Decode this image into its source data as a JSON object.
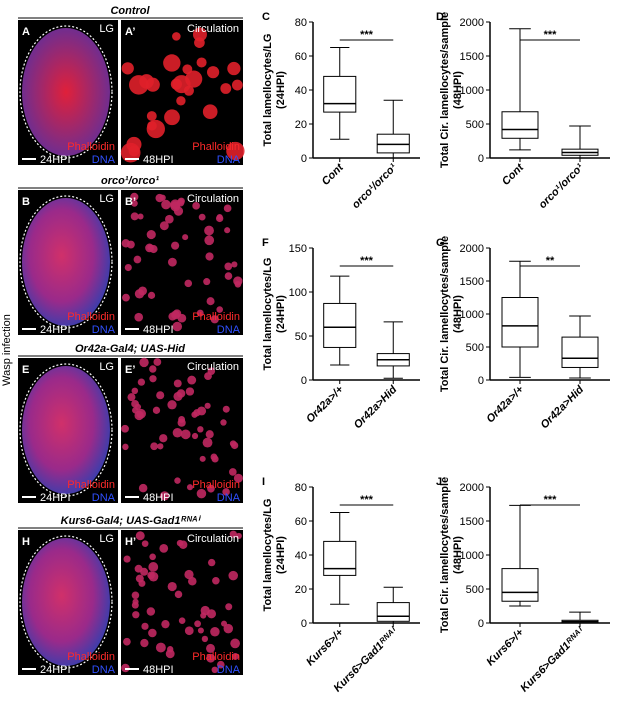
{
  "side_label": "Wasp infection",
  "panels": [
    {
      "title": "Control",
      "left": {
        "letter": "A",
        "region": "LG",
        "time": "24HPI",
        "stain1": "Phalloidin",
        "stain2": "DNA"
      },
      "right": {
        "letter": "A’",
        "region": "Circulation",
        "time": "48HPI",
        "stain1": "Phalloidin",
        "stain2": "DNA"
      }
    },
    {
      "title": "orco¹/orco¹",
      "left": {
        "letter": "B",
        "region": "LG",
        "time": "24HPI",
        "stain1": "Phalloidin",
        "stain2": "DNA"
      },
      "right": {
        "letter": "B’",
        "region": "Circulation",
        "time": "48HPI",
        "stain1": "Phalloidin",
        "stain2": "DNA"
      }
    },
    {
      "title": "Or42a-Gal4; UAS-Hid",
      "left": {
        "letter": "E",
        "region": "LG",
        "time": "24HPI",
        "stain1": "Phalloidin",
        "stain2": "DNA"
      },
      "right": {
        "letter": "E’",
        "region": "Circulation",
        "time": "48HPI",
        "stain1": "Phalloidin",
        "stain2": "DNA"
      }
    },
    {
      "title": "Kurs6-Gal4; UAS-Gad1ᴿᴺᴬⁱ",
      "left": {
        "letter": "H",
        "region": "LG",
        "time": "24HPI",
        "stain1": "Phalloidin",
        "stain2": "DNA"
      },
      "right": {
        "letter": "H’",
        "region": "Circulation",
        "time": "48HPI",
        "stain1": "Phalloidin",
        "stain2": "DNA"
      }
    }
  ],
  "chart_data": [
    {
      "type": "box",
      "letter": "C",
      "ylabel": [
        "Total lamellocytes/LG",
        "(24HPI)"
      ],
      "categories": [
        "Cont",
        "orco¹/orco¹"
      ],
      "values": [
        {
          "min": 11,
          "q1": 27,
          "median": 32,
          "q3": 48,
          "max": 65
        },
        {
          "min": 0,
          "q1": 3,
          "median": 8,
          "q3": 14,
          "max": 34
        }
      ],
      "significance": "***",
      "ylim": [
        0,
        80
      ],
      "yticks": [
        0,
        20,
        40,
        60,
        80
      ]
    },
    {
      "type": "box",
      "letter": "D",
      "ylabel": [
        "Total Cir. lamellocytes/sample",
        "(48HPI)"
      ],
      "categories": [
        "Cont",
        "orco¹/orco¹"
      ],
      "values": [
        {
          "min": 120,
          "q1": 290,
          "median": 420,
          "q3": 680,
          "max": 1900
        },
        {
          "min": 0,
          "q1": 40,
          "median": 80,
          "q3": 130,
          "max": 470
        }
      ],
      "significance": "***",
      "ylim": [
        0,
        2000
      ],
      "yticks": [
        0,
        500,
        1000,
        1500,
        2000
      ]
    },
    {
      "type": "box",
      "letter": "F",
      "ylabel": [
        "Total lamellocytes/LG",
        "(24HPI)"
      ],
      "categories": [
        "Or42a>/+",
        "Or42a>Hid"
      ],
      "values": [
        {
          "min": 17,
          "q1": 37,
          "median": 60,
          "q3": 87,
          "max": 118
        },
        {
          "min": 2,
          "q1": 16,
          "median": 23,
          "q3": 30,
          "max": 66
        }
      ],
      "significance": "***",
      "ylim": [
        0,
        150
      ],
      "yticks": [
        0,
        50,
        100,
        150
      ]
    },
    {
      "type": "box",
      "letter": "G",
      "ylabel": [
        "Total Cir. lamellocytes/sample",
        "(48HPI)"
      ],
      "categories": [
        "Or42a>/+",
        "Or42a>Hid"
      ],
      "values": [
        {
          "min": 40,
          "q1": 500,
          "median": 820,
          "q3": 1250,
          "max": 1800
        },
        {
          "min": 30,
          "q1": 190,
          "median": 330,
          "q3": 650,
          "max": 970
        }
      ],
      "significance": "**",
      "ylim": [
        0,
        2000
      ],
      "yticks": [
        0,
        500,
        1000,
        1500,
        2000
      ]
    },
    {
      "type": "box",
      "letter": "I",
      "ylabel": [
        "Total lamellocytes/LG",
        "(24HPI)"
      ],
      "categories": [
        "Kurs6>/+",
        "Kurs6>Gad1ᴿᴺᴬⁱ"
      ],
      "values": [
        {
          "min": 11,
          "q1": 28,
          "median": 32,
          "q3": 48,
          "max": 65
        },
        {
          "min": 0,
          "q1": 1,
          "median": 4,
          "q3": 12,
          "max": 21
        }
      ],
      "significance": "***",
      "ylim": [
        0,
        80
      ],
      "yticks": [
        0,
        20,
        40,
        60,
        80
      ]
    },
    {
      "type": "box",
      "letter": "J",
      "ylabel": [
        "Total Cir. lamellocytes/sample",
        "(48HPI)"
      ],
      "categories": [
        "Kurs6>/+",
        "Kurs6>Gad1ᴿᴺᴬⁱ"
      ],
      "values": [
        {
          "min": 250,
          "q1": 320,
          "median": 450,
          "q3": 800,
          "max": 1730
        },
        {
          "min": 0,
          "q1": 5,
          "median": 20,
          "q3": 40,
          "max": 160
        }
      ],
      "significance": "***",
      "ylim": [
        0,
        2000
      ],
      "yticks": [
        0,
        500,
        1000,
        1500,
        2000
      ]
    }
  ]
}
